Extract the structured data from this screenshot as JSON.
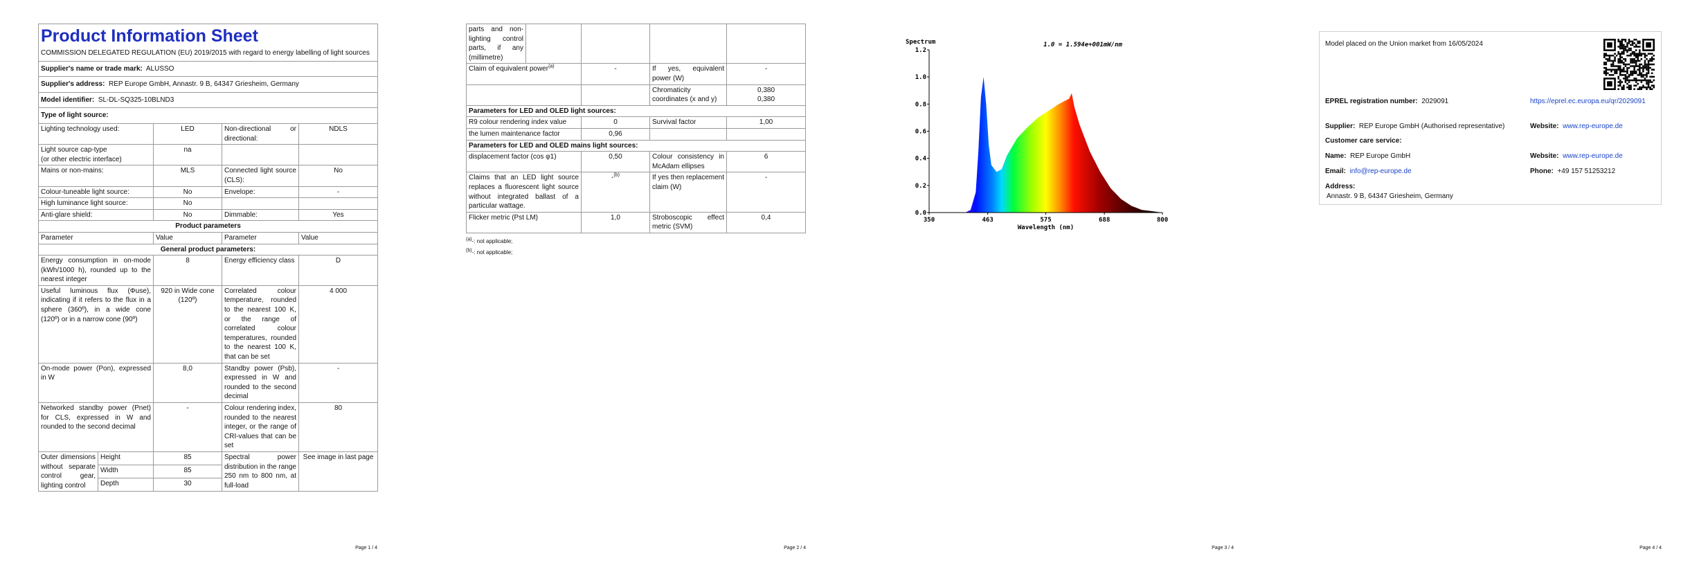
{
  "page1": {
    "title": "Product Information Sheet",
    "regulation": "COMMISSION DELEGATED REGULATION (EU) 2019/2015 with regard to energy labelling of light sources",
    "supplier": [
      {
        "label": "Supplier's name or trade mark:",
        "value": "ALUSSO"
      },
      {
        "label": "Supplier's address:",
        "value": "REP Europe GmbH, Annastr. 9 B, 64347 Griesheim, Germany"
      },
      {
        "label": "Model identifier:",
        "value": "SL-DL-SQ325-10BLND3"
      }
    ],
    "type_heading": "Type of light source:",
    "type_rows": [
      {
        "a": "Lighting technology used:",
        "b": "LED",
        "c": "Non-directional or directional:",
        "d": "NDLS"
      },
      {
        "a": "Light source cap-type\n(or other electric interface)",
        "b": "na"
      },
      {
        "a": "Mains or non-mains:",
        "b": "MLS",
        "c": "Connected light source (CLS):",
        "d": "No"
      },
      {
        "a": "Colour-tuneable light source:",
        "b": "No",
        "c": "Envelope:",
        "d": "-"
      },
      {
        "a": "High luminance light source:",
        "b": "No"
      },
      {
        "a": "Anti-glare shield:",
        "b": "No",
        "c": "Dimmable:",
        "d": "Yes"
      }
    ],
    "params_heading": "Product parameters",
    "columns": [
      "Parameter",
      "Value",
      "Parameter",
      "Value"
    ],
    "general_heading": "General product parameters:",
    "rows": [
      {
        "a": "Energy consumption in on-mode (kWh/1000 h), rounded up to the nearest integer",
        "b": "8",
        "c": "Energy efficiency class",
        "d": "D"
      },
      {
        "a": "Useful luminous flux (Φuse), indicating if it refers to the flux in a sphere (360º), in a wide cone (120º) or in a narrow cone (90º)",
        "b": "920 in Wide cone (120º)",
        "c": "Correlated colour temperature, rounded to the nearest 100 K, or the range of correlated colour temperatures, rounded to the nearest 100 K, that can be set",
        "d": "4 000"
      },
      {
        "a": "On-mode power (Pon), expressed in W",
        "b": "8,0",
        "c": "Standby power (Psb), expressed in W and rounded to the second decimal",
        "d": "-"
      },
      {
        "a": "Networked standby power (Pnet) for CLS, expressed in W and rounded to the second decimal",
        "b": "-",
        "c": "Colour rendering index, rounded to the nearest integer, or the range of CRI-values that can be set",
        "d": "80"
      }
    ],
    "dimensions": {
      "label": "Outer dimensions without separate control gear, lighting control",
      "items": [
        {
          "name": "Height",
          "value": "85"
        },
        {
          "name": "Width",
          "value": "85"
        },
        {
          "name": "Depth",
          "value": "30"
        }
      ],
      "c": "Spectral power distribution in the range 250 nm to 800 nm, at full-load",
      "d": "See image in last page"
    },
    "footer": "Page 1 / 4"
  },
  "page2": {
    "continuation": "parts and non-lighting control parts, if any (millimetre)",
    "rows": [
      {
        "a": "Claim of equivalent power",
        "a_note": "(a)",
        "b": "-",
        "c": "If yes, equivalent power (W)",
        "d": "-"
      },
      {
        "c": "Chromaticity coordinates (x and y)",
        "d": "0,380\n0,380"
      }
    ],
    "led_heading": "Parameters for LED and OLED light sources:",
    "led_rows": [
      {
        "a": "R9 colour rendering index value",
        "b": "0",
        "c": "Survival factor",
        "d": "1,00"
      },
      {
        "a": "the lumen maintenance factor",
        "b": "0,96"
      }
    ],
    "mains_heading": "Parameters for LED and OLED mains light sources:",
    "mains_rows": [
      {
        "a": "displacement factor (cos φ1)",
        "b": "0,50",
        "c": "Colour consistency in McAdam ellipses",
        "d": "6"
      },
      {
        "a": "Claims that an LED light source replaces a fluorescent light source without integrated ballast of a particular wattage.",
        "b": "-",
        "b_note": "(b)",
        "c": "If yes then replacement claim (W)",
        "d": "-"
      },
      {
        "a": "Flicker metric (Pst LM)",
        "b": "1,0",
        "c": "Stroboscopic effect metric (SVM)",
        "d": "0,4"
      }
    ],
    "notes": [
      {
        "mark": "(a)",
        "text": "-: not applicable;"
      },
      {
        "mark": "(b)",
        "text": "-: not applicable;"
      }
    ],
    "footer": "Page 2 / 4"
  },
  "page3": {
    "spectrum": {
      "title": "Spectrum",
      "scale_note": "1.0 = 1.594e+001mW/nm",
      "x_label": "Wavelength (nm)",
      "xlim": [
        350,
        800
      ],
      "xticks": [
        350,
        463,
        575,
        688,
        800
      ],
      "ylim": [
        0,
        1.2
      ],
      "yticks": [
        {
          "value": 0,
          "label": "0.0"
        },
        0.2,
        0.4,
        0.6,
        0.8,
        {
          "value": 1,
          "label": "1.0"
        },
        1.2
      ],
      "x": [
        350,
        420,
        430,
        440,
        445,
        450,
        455,
        460,
        465,
        470,
        480,
        490,
        500,
        520,
        540,
        560,
        580,
        600,
        610,
        620,
        625,
        630,
        640,
        660,
        680,
        700,
        720,
        740,
        760,
        780,
        800
      ],
      "values": [
        0,
        0,
        0.02,
        0.15,
        0.45,
        0.85,
        1.0,
        0.8,
        0.5,
        0.35,
        0.3,
        0.32,
        0.42,
        0.55,
        0.63,
        0.7,
        0.75,
        0.8,
        0.82,
        0.84,
        0.88,
        0.78,
        0.65,
        0.45,
        0.3,
        0.18,
        0.1,
        0.05,
        0.02,
        0.01,
        0
      ]
    },
    "footer": "Page 3 / 4"
  },
  "page4": {
    "market": "Model placed on the Union market from 16/05/2024",
    "eprel_label": "EPREL registration number:",
    "eprel_number": "2029091",
    "eprel_link": "https://eprel.ec.europa.eu/qr/2029091",
    "supplier_label": "Supplier:",
    "supplier": "REP Europe GmbH (Authorised representative)",
    "website_label": "Website:",
    "website": "www.rep-europe.de",
    "customer_care": "Customer care service:",
    "name_label": "Name:",
    "name": "REP Europe GmbH",
    "website2_label": "Website:",
    "website2": "www.rep-europe.de",
    "email_label": "Email:",
    "email": "info@rep-europe.de",
    "phone_label": "Phone:",
    "phone": "+49 157 51253212",
    "address_label": "Address:",
    "address": "Annastr. 9 B, 64347 Griesheim, Germany",
    "footer": "Page 4 / 4"
  }
}
